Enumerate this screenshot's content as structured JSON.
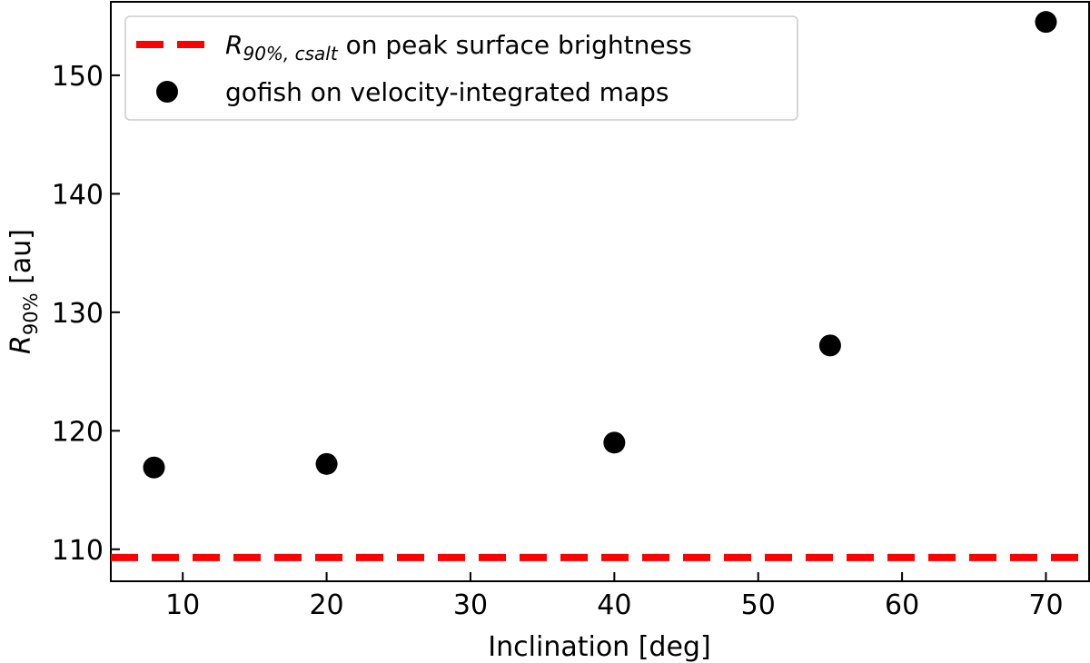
{
  "chart_data": {
    "type": "scatter",
    "title": "",
    "xlabel": "Inclination [deg]",
    "ylabel_main": "R",
    "ylabel_sub": "90%",
    "ylabel_unit": "[au]",
    "xlim": [
      5,
      73
    ],
    "ylim": [
      107.3,
      156.2
    ],
    "xticks": [
      10,
      20,
      30,
      40,
      50,
      60,
      70
    ],
    "yticks": [
      110,
      120,
      130,
      140,
      150
    ],
    "series": [
      {
        "name": "gofish on velocity-integrated maps",
        "kind": "scatter",
        "color": "#000000",
        "x": [
          8,
          20,
          40,
          55,
          70
        ],
        "y": [
          116.9,
          117.2,
          119.0,
          127.2,
          154.5
        ]
      }
    ],
    "hline": {
      "name_main": "R",
      "name_sub": "90%, csalt",
      "name_rest": " on peak surface brightness",
      "y": 109.3,
      "color": "#ff0000",
      "style": "dashed"
    },
    "legend_position": "top-left"
  }
}
